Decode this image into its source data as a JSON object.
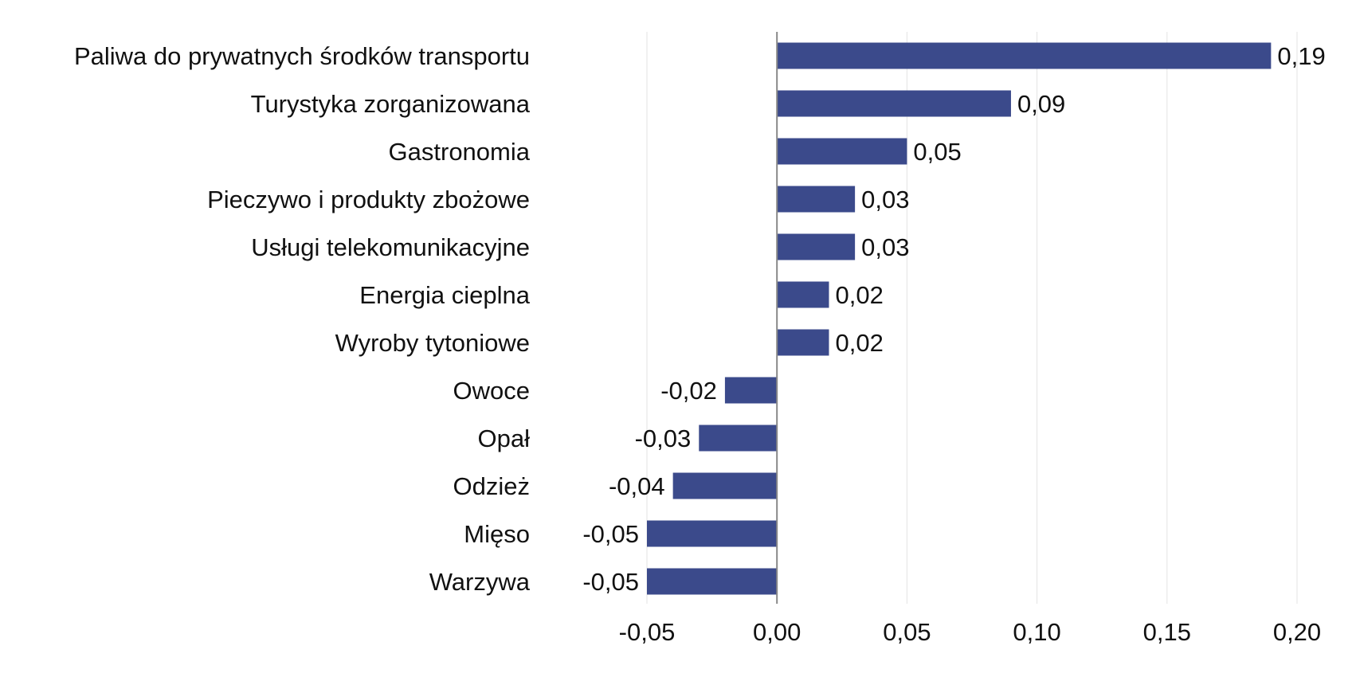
{
  "chart_data": {
    "type": "bar",
    "orientation": "horizontal",
    "categories": [
      "Paliwa do prywatnych środków transportu",
      "Turystyka zorganizowana",
      "Gastronomia",
      "Pieczywo i produkty zbożowe",
      "Usługi telekomunikacyjne",
      "Energia cieplna",
      "Wyroby tytoniowe",
      "Owoce",
      "Opał",
      "Odzież",
      "Mięso",
      "Warzywa"
    ],
    "values": [
      0.19,
      0.09,
      0.05,
      0.03,
      0.03,
      0.02,
      0.02,
      -0.02,
      -0.03,
      -0.04,
      -0.05,
      -0.05
    ],
    "value_labels": [
      "0,19",
      "0,09",
      "0,05",
      "0,03",
      "0,03",
      "0,02",
      "0,02",
      "-0,02",
      "-0,03",
      "-0,04",
      "-0,05",
      "-0,05"
    ],
    "xlim": [
      -0.05,
      0.2
    ],
    "xticks": [
      -0.05,
      0.0,
      0.05,
      0.1,
      0.15,
      0.2
    ],
    "xtick_labels": [
      "-0,05",
      "0,00",
      "0,05",
      "0,10",
      "0,15",
      "0,20"
    ],
    "bar_color": "#3b4a8b",
    "grid": true,
    "title": "",
    "xlabel": "",
    "ylabel": ""
  }
}
